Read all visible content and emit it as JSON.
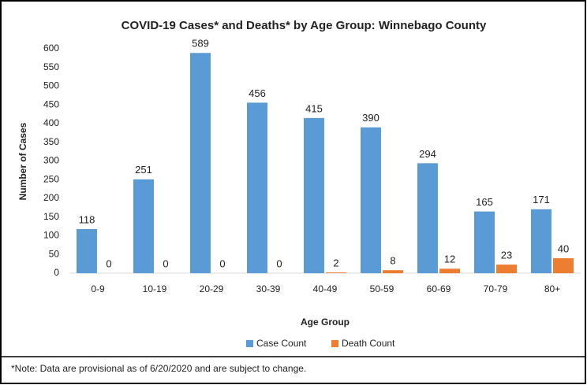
{
  "chart_data": {
    "type": "bar",
    "title": "COVID-19 Cases* and Deaths* by Age Group: Winnebago County",
    "x_label": "Age Group",
    "y_label": "Number of Cases",
    "note": "*Note: Data are provisional as of 6/20/2020 and are subject to change.",
    "categories": [
      "0-9",
      "10-19",
      "20-29",
      "30-39",
      "40-49",
      "50-59",
      "60-69",
      "70-79",
      "80+"
    ],
    "series": [
      {
        "name": "Case Count",
        "color": "#5b9bd5",
        "values": [
          118,
          251,
          589,
          456,
          415,
          390,
          294,
          165,
          171
        ]
      },
      {
        "name": "Death Count",
        "color": "#ed7d31",
        "values": [
          0,
          0,
          0,
          0,
          2,
          8,
          12,
          23,
          40
        ]
      }
    ],
    "ylim": [
      0,
      600
    ],
    "yticks": [
      0,
      50,
      100,
      150,
      200,
      250,
      300,
      350,
      400,
      450,
      500,
      550,
      600
    ],
    "grid": false,
    "legend": "bottom"
  }
}
